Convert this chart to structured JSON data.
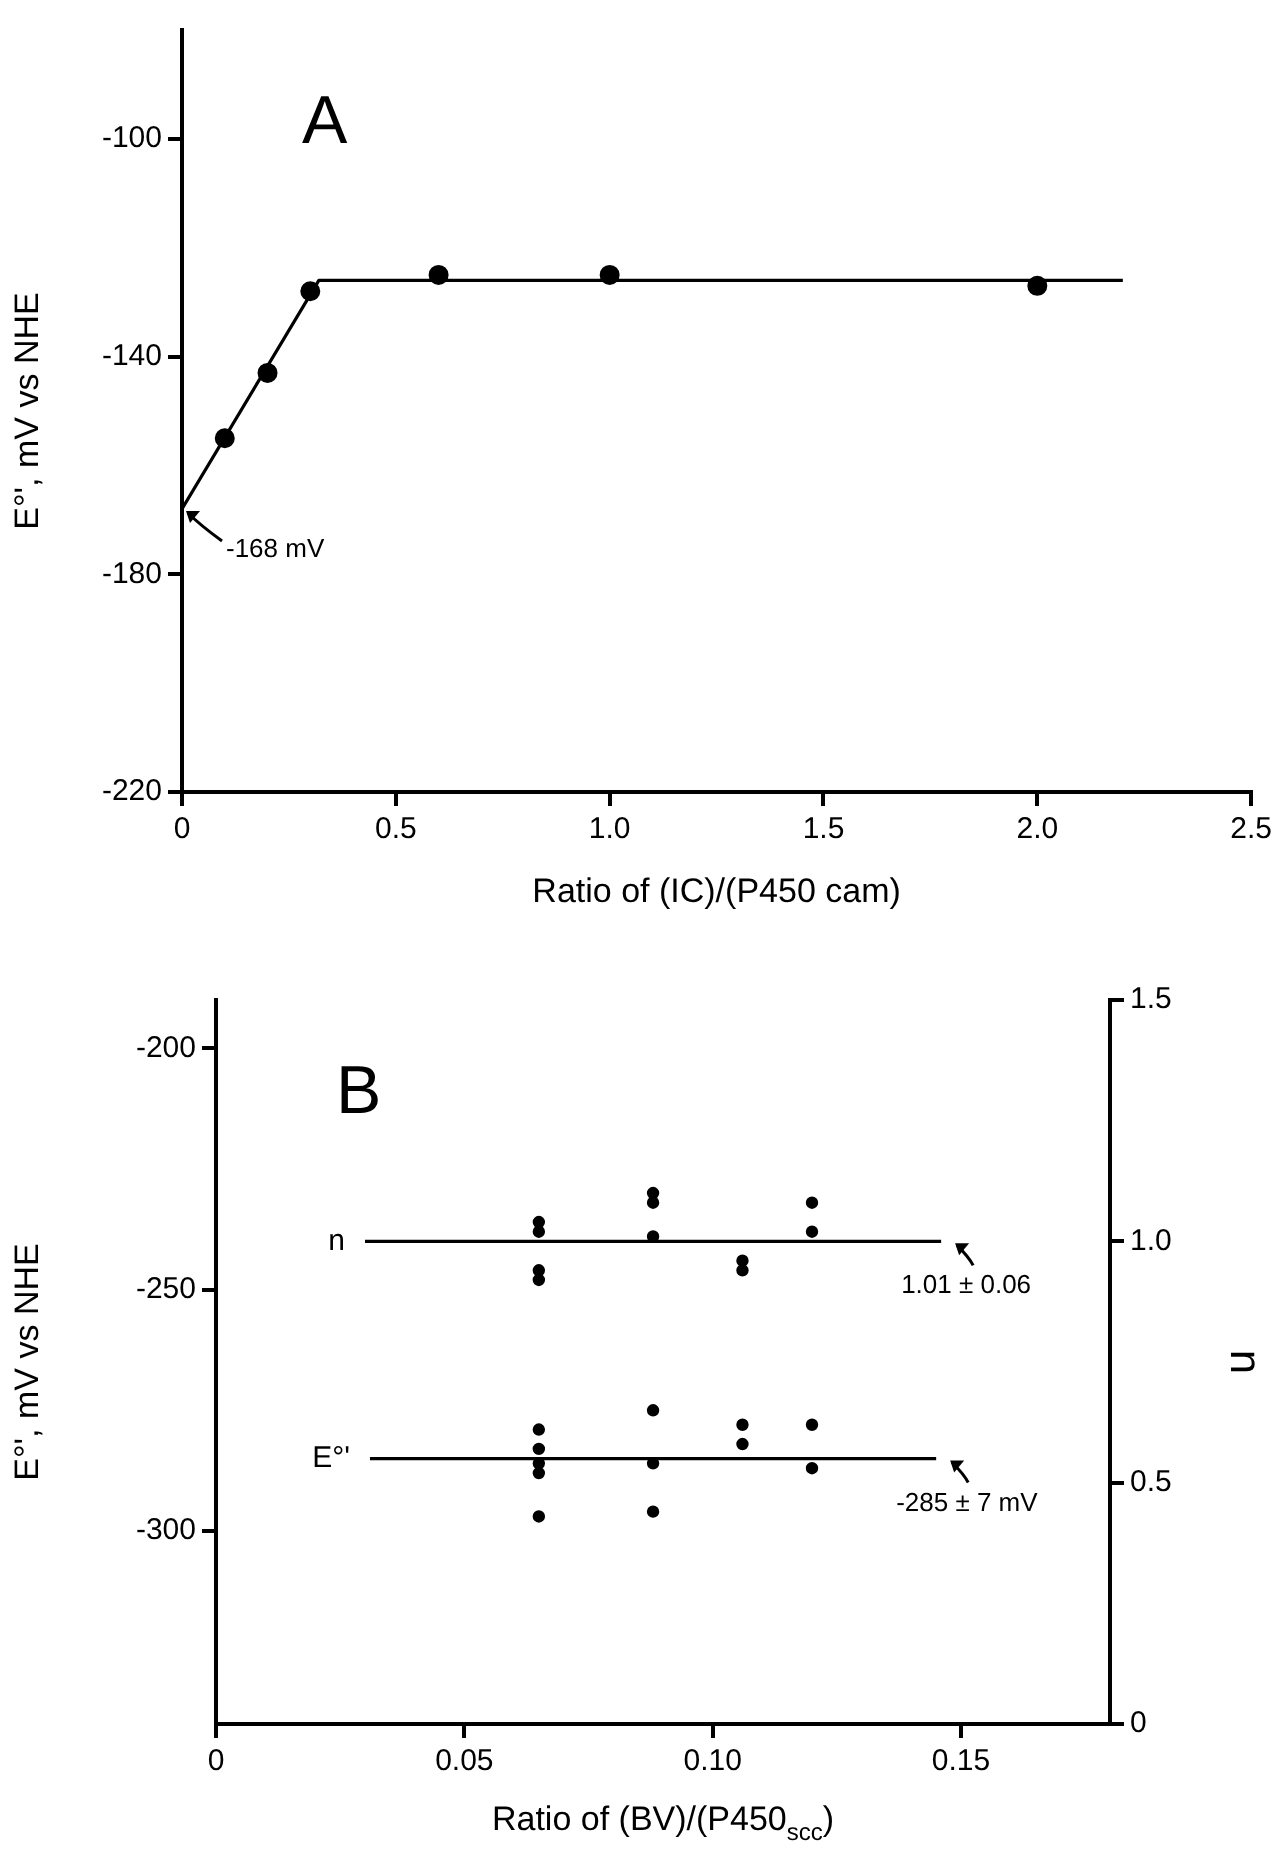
{
  "chart_data": [
    {
      "type": "scatter",
      "xlabel": "Ratio of (IC)/(P450 cam)",
      "ylabel": "E°', mV vs NHE",
      "xlim": [
        0,
        2.5
      ],
      "xticks": [
        0,
        0.5,
        {
          "value": 1,
          "label": "1.0"
        },
        1.5,
        {
          "value": 2,
          "label": "2.0"
        },
        2.5
      ],
      "ylim": [
        -220,
        -80
      ],
      "yticks": [
        -220,
        -180,
        -140,
        -100
      ],
      "marker": "circle",
      "legend": false,
      "series": [
        {
          "type": "scatter",
          "color": "#000000",
          "x": [
            0.1,
            0.2,
            0.3,
            0.6,
            1.0,
            2.0
          ],
          "values": [
            -155,
            -143,
            -128,
            -125,
            -125,
            -127
          ]
        },
        {
          "type": "line",
          "color": "#000000",
          "marker": "none",
          "x": [
            0,
            0.32,
            2.2
          ],
          "values": [
            -168,
            -126,
            -126
          ]
        }
      ],
      "annotations": [
        "A",
        {
          "text": "-168 mV",
          "x": 0,
          "y": -168
        }
      ]
    },
    {
      "type": "scatter",
      "xlabel": "Ratio of (BV)/(P450$_{scc}$)",
      "ylabel": "E°', mV vs NHE",
      "y2label": "n",
      "xlim": [
        0,
        0.18
      ],
      "xticks": [
        {
          "value": 0,
          "label": "0"
        },
        0.05,
        {
          "value": 0.1,
          "label": "0.10"
        },
        0.15
      ],
      "ylim": [
        -340,
        -190
      ],
      "yticks": [
        -300,
        -250,
        -200
      ],
      "y2lim": [
        0,
        1.5
      ],
      "y2ticks": [
        0,
        0.5,
        {
          "value": 1,
          "label": "1.0"
        },
        1.5
      ],
      "marker": "circle",
      "legend": false,
      "series": [
        {
          "type": "scatter",
          "color": "#000000",
          "x": [
            0.065,
            0.065,
            0.065,
            0.065,
            0.065,
            0.088,
            0.088,
            0.088,
            0.106,
            0.106,
            0.12,
            0.12
          ],
          "values": [
            -279,
            -283,
            -286,
            -288,
            -297,
            -275,
            -286,
            -296,
            -278,
            -282,
            -278,
            -287
          ]
        },
        {
          "type": "scatter",
          "color": "#000000",
          "axis": "y2",
          "x": [
            0.065,
            0.065,
            0.065,
            0.065,
            0.088,
            0.088,
            0.088,
            0.106,
            0.106,
            0.12,
            0.12
          ],
          "values": [
            1.04,
            1.02,
            0.94,
            0.92,
            1.1,
            1.08,
            1.01,
            0.96,
            0.94,
            1.08,
            1.02
          ]
        },
        {
          "type": "line",
          "name": "n",
          "color": "#000000",
          "marker": "none",
          "axis": "y2",
          "x": [
            0.03,
            0.146
          ],
          "values": [
            1.0,
            1.0
          ]
        },
        {
          "type": "line",
          "name": "E°'",
          "color": "#000000",
          "marker": "none",
          "x": [
            0.031,
            0.145
          ],
          "values": [
            -285,
            -285
          ]
        }
      ],
      "annotations": [
        "B",
        {
          "text": "1.01 ± 0.06",
          "x": 0.146,
          "y": -240
        },
        {
          "text": "-285 ± 7 mV",
          "x": 0.145,
          "y": -285
        }
      ]
    }
  ]
}
